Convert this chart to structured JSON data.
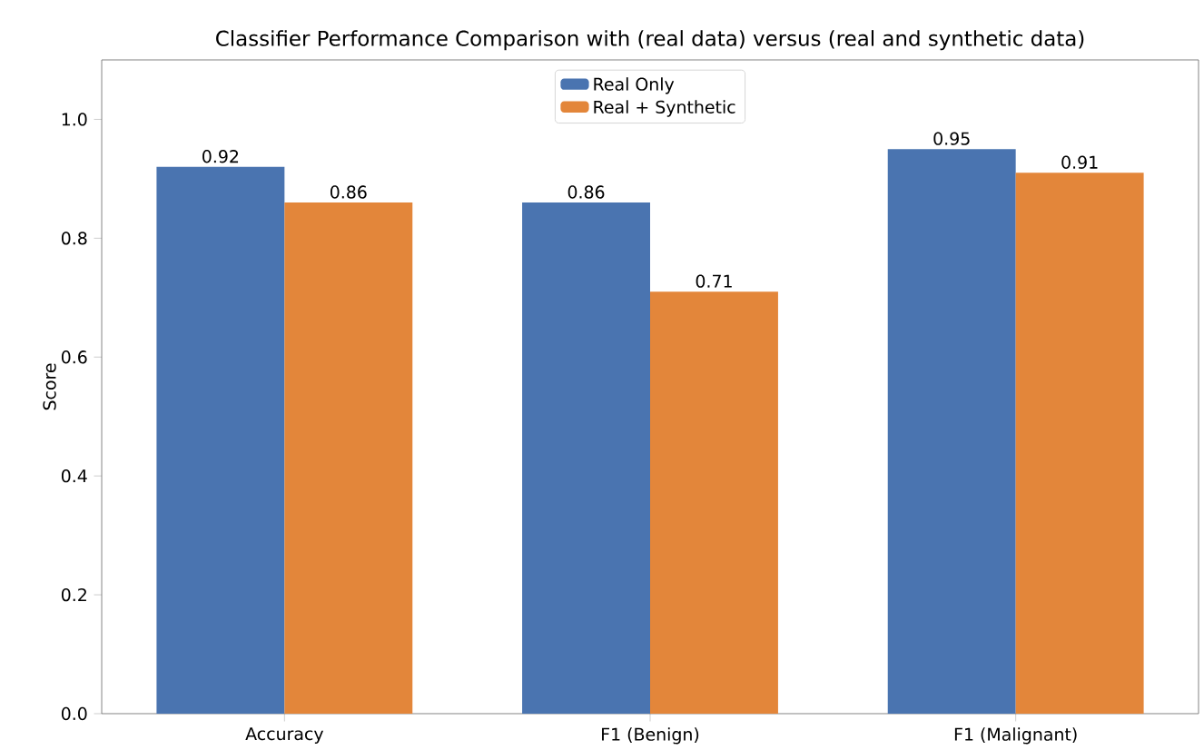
{
  "chart_data": {
    "type": "bar",
    "title": "Classifier Performance Comparison with (real data) versus (real and synthetic data)",
    "ylabel": "Score",
    "categories": [
      "Accuracy",
      "F1 (Benign)",
      "F1 (Malignant)"
    ],
    "series": [
      {
        "name": "Real Only",
        "color": "#4a74b0",
        "values": [
          0.92,
          0.86,
          0.95
        ]
      },
      {
        "name": "Real + Synthetic",
        "color": "#e3863a",
        "values": [
          0.86,
          0.71,
          0.91
        ]
      }
    ],
    "ylim": [
      0,
      1.1
    ],
    "yticks": [
      {
        "value": 0,
        "label": "0.0"
      },
      0.2,
      0.4,
      0.6,
      0.8,
      {
        "value": 1,
        "label": "1.0"
      }
    ],
    "data_labels": true,
    "legend": "top",
    "grid": false
  }
}
